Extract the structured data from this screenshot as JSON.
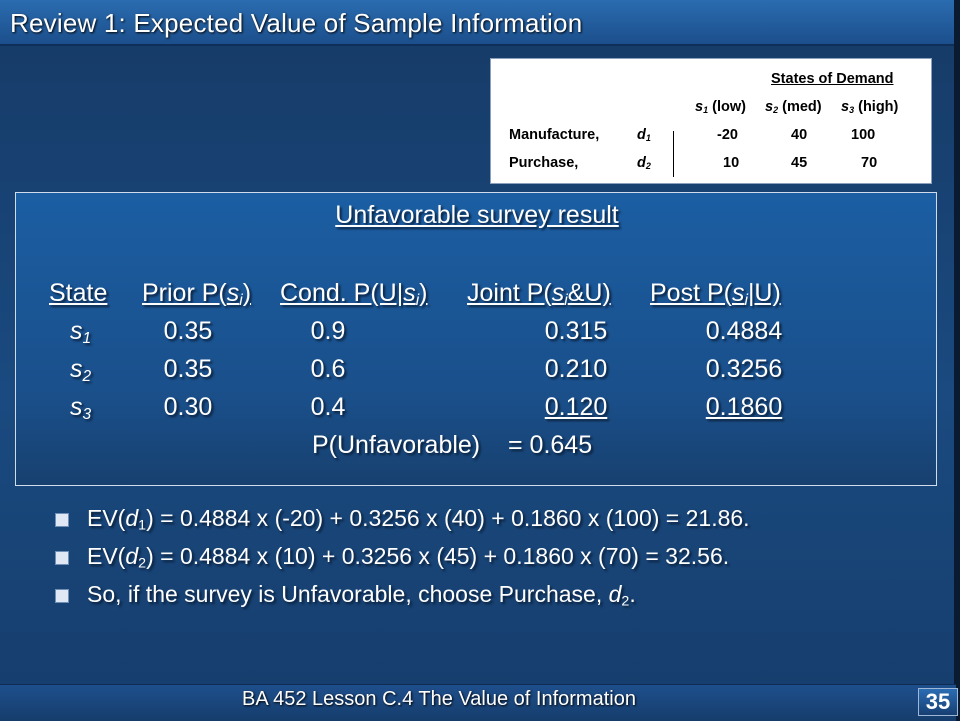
{
  "header": {
    "title": "Review 1: Expected Value of Sample Information"
  },
  "payoff_table": {
    "heading": "States of Demand",
    "columns": [
      {
        "sym": "s",
        "sub": "1",
        "label": "(low)"
      },
      {
        "sym": "s",
        "sub": "2",
        "label": "(med)"
      },
      {
        "sym": "s",
        "sub": "3",
        "label": "(high)"
      }
    ],
    "rows": [
      {
        "name": "Manufacture,",
        "sym": "d",
        "sub": "1",
        "values": [
          "-20",
          "40",
          "100"
        ]
      },
      {
        "name": "Purchase,",
        "sym": "d",
        "sub": "2",
        "values": [
          "10",
          "45",
          "70"
        ]
      }
    ]
  },
  "posterior": {
    "title": "Unfavorable survey result",
    "headers": {
      "state": "State",
      "prior": {
        "pre": "Prior P(",
        "sym": "s",
        "sub": "i",
        "post": ")"
      },
      "cond": {
        "pre": "Cond. P(U|",
        "sym": "s",
        "sub": "i",
        "post": ")"
      },
      "joint": {
        "pre": "Joint P(",
        "sym": "s",
        "sub": "i",
        "post": "&U)"
      },
      "post": {
        "pre": "Post P(",
        "sym": "s",
        "sub": "i",
        "post": "|U)"
      }
    },
    "rows": [
      {
        "sym": "s",
        "sub": "1",
        "prior": "0.35",
        "cond": "0.9",
        "joint": "0.315",
        "post": "0.4884"
      },
      {
        "sym": "s",
        "sub": "2",
        "prior": "0.35",
        "cond": "0.6",
        "joint": "0.210",
        "post": "0.3256"
      },
      {
        "sym": "s",
        "sub": "3",
        "prior": "0.30",
        "cond": "0.4",
        "joint": "0.120",
        "post": "0.1860"
      }
    ],
    "total_label": "P(Unfavorable)",
    "total_value": "= 0.645"
  },
  "bullets": [
    {
      "pre": "EV(",
      "sym": "d",
      "sub": "1",
      "post": ") = 0.4884 x (-20) + 0.3256 x (40) + 0.1860 x (100) = 21.86."
    },
    {
      "pre": "EV(",
      "sym": "d",
      "sub": "2",
      "post": ") = 0.4884 x (10) + 0.3256 x (45) + 0.1860 x (70) = 32.56."
    },
    {
      "pre": "So, if the survey is Unfavorable, choose Purchase, ",
      "sym": "d",
      "sub": "2",
      "post": "."
    }
  ],
  "footer": {
    "course": "BA 452  Lesson C.4 The Value of Information",
    "page": "35"
  }
}
